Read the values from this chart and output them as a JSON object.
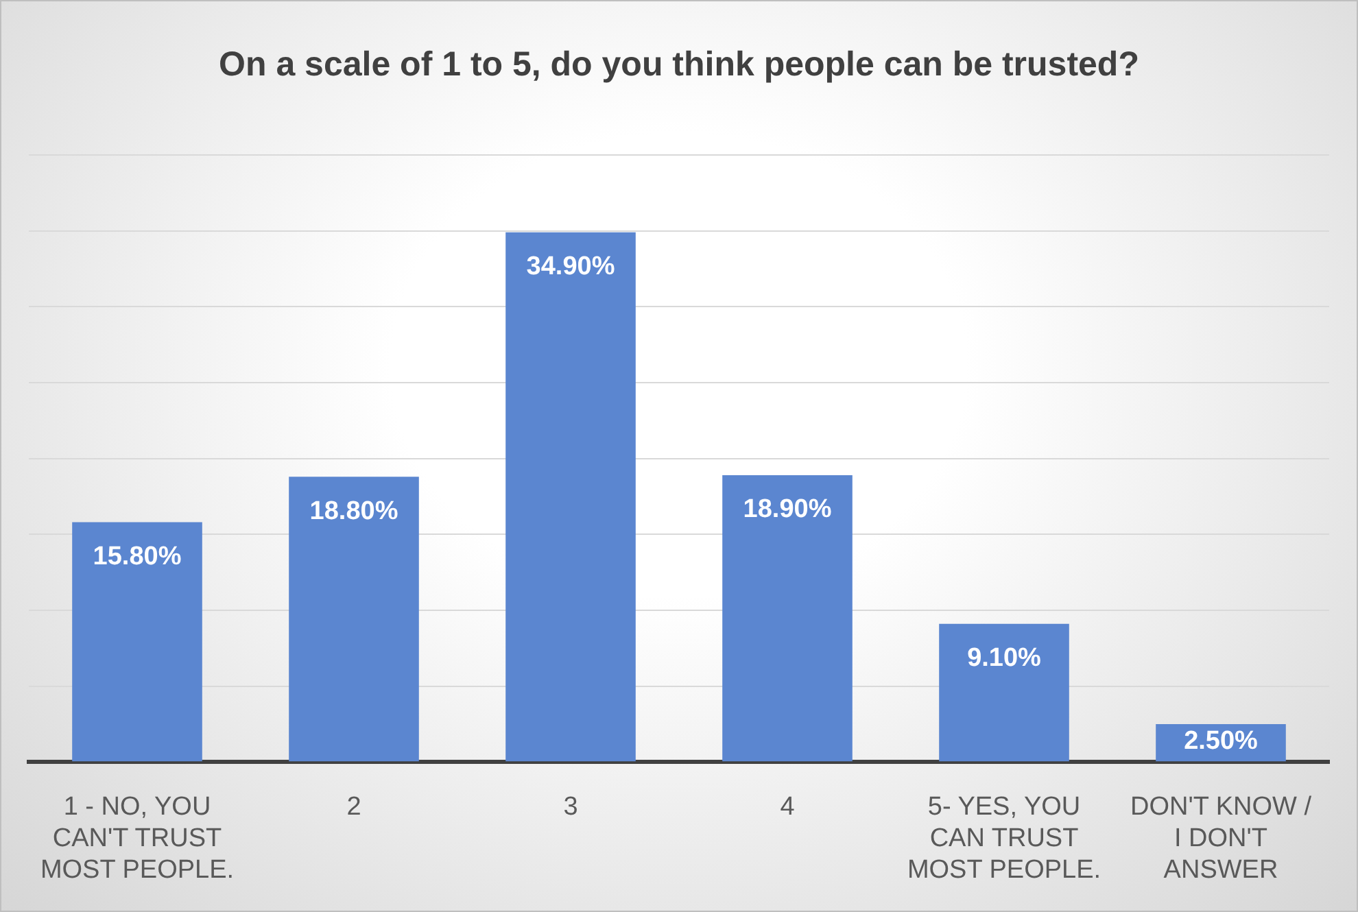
{
  "chart_data": {
    "type": "bar",
    "title": "On a scale of 1 to 5, do you think people can be trusted?",
    "categories": [
      "1 - NO, YOU CAN'T TRUST MOST PEOPLE.",
      "2",
      "3",
      "4",
      "5- YES, YOU CAN TRUST MOST PEOPLE.",
      "DON'T KNOW / I DON'T ANSWER"
    ],
    "values": [
      15.8,
      18.8,
      34.9,
      18.9,
      9.1,
      2.5
    ],
    "value_labels": [
      "15.80%",
      "18.80%",
      "34.90%",
      "18.90%",
      "9.10%",
      "2.50%"
    ],
    "color": "#5b86d0",
    "ylim": [
      0,
      40
    ],
    "yticks": [
      {
        "value": 0,
        "label": null
      },
      {
        "value": 5,
        "label": null
      },
      {
        "value": 10,
        "label": null
      },
      {
        "value": 15,
        "label": null
      },
      {
        "value": 20,
        "label": null
      },
      {
        "value": 25,
        "label": null
      },
      {
        "value": 30,
        "label": null
      },
      {
        "value": 35,
        "label": null
      },
      {
        "value": 40,
        "label": null
      }
    ],
    "grid": "y",
    "tick_labels": "x",
    "legend": false
  }
}
